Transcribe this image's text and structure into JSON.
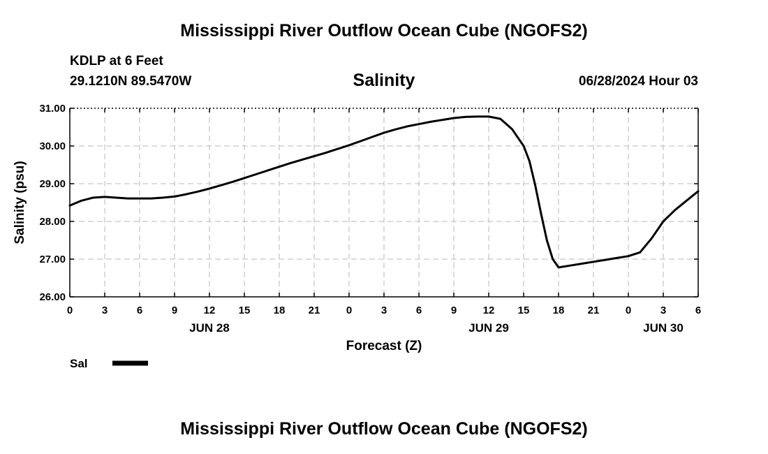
{
  "page": {
    "title": "Mississippi River Outflow Ocean Cube (NGOFS2)",
    "footer_title": "Mississippi River Outflow Ocean Cube (NGOFS2)",
    "station": "KDLP at 6 Feet",
    "location": "29.1210N  89.5470W",
    "datetime": "06/28/2024 Hour 03"
  },
  "chart_data": {
    "type": "line",
    "title": "Salinity",
    "xlabel": "Forecast (Z)",
    "ylabel": "Salinity (psu)",
    "xlim": [
      0,
      54
    ],
    "ylim": [
      26.0,
      31.0
    ],
    "x_ticks": [
      0,
      3,
      6,
      9,
      12,
      15,
      18,
      21,
      24,
      27,
      30,
      33,
      36,
      39,
      42,
      45,
      48,
      51,
      54
    ],
    "x_tick_labels": [
      "0",
      "3",
      "6",
      "9",
      "12",
      "15",
      "18",
      "21",
      "0",
      "3",
      "6",
      "9",
      "12",
      "15",
      "18",
      "21",
      "0",
      "3",
      "6"
    ],
    "y_ticks": [
      26.0,
      27.0,
      28.0,
      29.0,
      30.0,
      31.0
    ],
    "y_tick_labels": [
      "26.00",
      "27.00",
      "28.00",
      "29.00",
      "30.00",
      "31.00"
    ],
    "date_labels": [
      {
        "x": 12,
        "label": "JUN 28"
      },
      {
        "x": 36,
        "label": "JUN 29"
      },
      {
        "x": 51,
        "label": "JUN 30"
      }
    ],
    "grid": true,
    "legend": [
      {
        "name": "Sal",
        "color": "#000000"
      }
    ],
    "series": [
      {
        "name": "Sal",
        "color": "#000000",
        "x": [
          0,
          1,
          2,
          3,
          4,
          5,
          6,
          7,
          8,
          9,
          10,
          11,
          12,
          13,
          14,
          15,
          16,
          17,
          18,
          19,
          20,
          21,
          22,
          23,
          24,
          25,
          26,
          27,
          28,
          29,
          30,
          31,
          32,
          33,
          34,
          35,
          36,
          37,
          38,
          39,
          39.5,
          40,
          40.5,
          41,
          41.5,
          42,
          43,
          44,
          45,
          46,
          47,
          48,
          49,
          50,
          51,
          52,
          53,
          54
        ],
        "values": [
          28.42,
          28.55,
          28.63,
          28.65,
          28.63,
          28.61,
          28.61,
          28.61,
          28.63,
          28.66,
          28.72,
          28.79,
          28.87,
          28.96,
          29.05,
          29.15,
          29.25,
          29.35,
          29.45,
          29.55,
          29.64,
          29.73,
          29.82,
          29.92,
          30.02,
          30.13,
          30.24,
          30.35,
          30.44,
          30.52,
          30.58,
          30.64,
          30.69,
          30.74,
          30.77,
          30.78,
          30.78,
          30.72,
          30.45,
          30.0,
          29.6,
          28.95,
          28.2,
          27.5,
          27.0,
          26.78,
          26.83,
          26.88,
          26.93,
          26.98,
          27.03,
          27.08,
          27.18,
          27.55,
          28.0,
          28.3,
          28.55,
          28.8
        ]
      }
    ]
  }
}
